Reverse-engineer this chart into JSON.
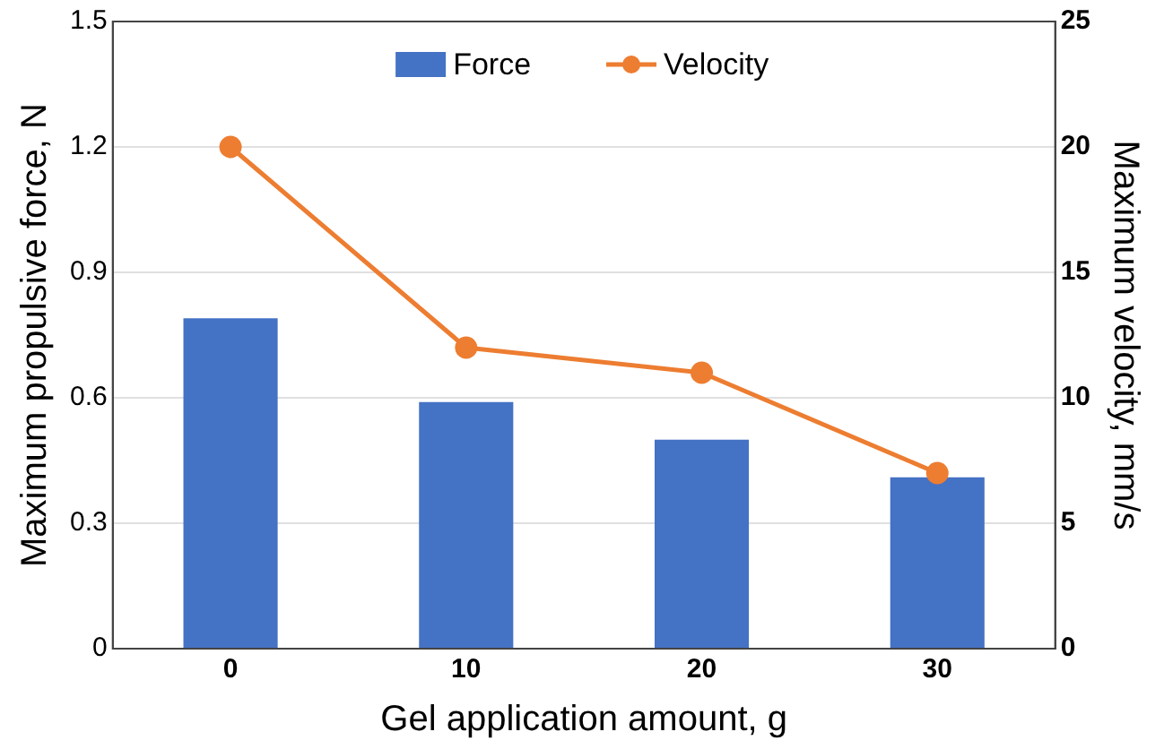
{
  "chart_data": {
    "type": "bar",
    "categories": [
      "0",
      "10",
      "20",
      "30"
    ],
    "xlabel": "Gel application amount, g",
    "ylabel": "Maximum propulsive force, N",
    "y2label": "Maximum velocity, mm/s",
    "series": [
      {
        "name": "Force",
        "color": "#4472c4",
        "values": [
          0.79,
          0.59,
          0.5,
          0.41
        ]
      },
      {
        "name": "Velocity",
        "type": "line",
        "axis": "y2",
        "color": "#ed7d31",
        "values": [
          20,
          12,
          11,
          7
        ]
      }
    ],
    "ylim": [
      0,
      1.5
    ],
    "yticks": [
      0,
      0.3,
      0.6,
      0.9,
      1.2,
      1.5
    ],
    "y2lim": [
      0,
      25
    ],
    "y2ticks": [
      0,
      5,
      10,
      15,
      20,
      25
    ],
    "grid": "y",
    "legend": "top",
    "marker": "circle",
    "line_style": "solid"
  }
}
